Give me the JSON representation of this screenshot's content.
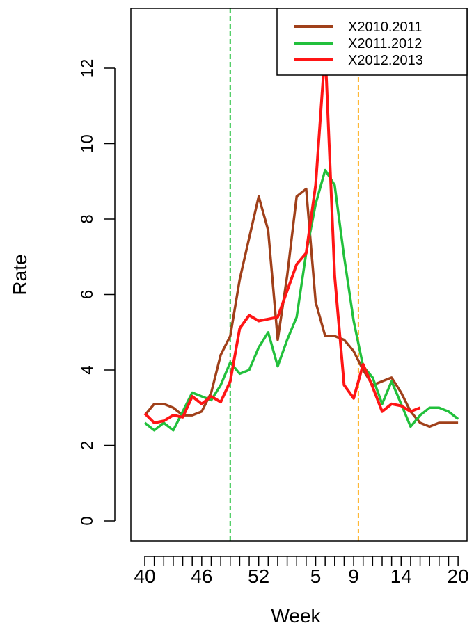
{
  "chart_data": {
    "type": "line",
    "title": "",
    "xlabel": "Week",
    "ylabel": "Rate",
    "ylim": [
      0,
      13
    ],
    "grid": false,
    "legend_position": "top-right",
    "x_weeks": [
      40,
      41,
      42,
      43,
      44,
      45,
      46,
      47,
      48,
      49,
      50,
      51,
      52,
      53,
      1,
      2,
      3,
      4,
      5,
      6,
      7,
      8,
      9,
      10,
      11,
      12,
      13,
      14,
      15,
      16,
      17,
      18,
      19,
      20
    ],
    "x_tick_labels": [
      "40",
      "46",
      "52",
      "5",
      "9",
      "14",
      "20"
    ],
    "x_tick_label_positions": [
      0,
      6,
      12,
      18,
      22,
      27,
      33
    ],
    "y_ticks": [
      0,
      2,
      4,
      6,
      8,
      10,
      12
    ],
    "series": [
      {
        "name": "X2010.2011",
        "color": "#A0401A",
        "values": [
          2.8,
          3.1,
          3.1,
          3.0,
          2.8,
          2.8,
          2.9,
          3.4,
          4.4,
          4.9,
          6.4,
          7.5,
          8.6,
          7.7,
          4.8,
          6.5,
          8.6,
          8.8,
          5.8,
          4.9,
          4.9,
          4.8,
          4.5,
          4.0,
          3.6,
          3.7,
          3.8,
          3.4,
          2.9,
          2.6,
          2.5,
          2.6,
          2.6,
          2.6
        ]
      },
      {
        "name": "X2011.2012",
        "color": "#22C03C",
        "values": [
          2.6,
          2.4,
          2.6,
          2.4,
          2.9,
          3.4,
          3.3,
          3.2,
          3.6,
          4.2,
          3.9,
          4.0,
          4.6,
          5.0,
          4.1,
          4.8,
          5.4,
          7.1,
          8.4,
          9.3,
          8.9,
          7.0,
          5.3,
          4.1,
          3.8,
          3.1,
          3.7,
          3.1,
          2.5,
          2.8,
          3.0,
          3.0,
          2.9,
          2.7
        ]
      },
      {
        "name": "X2012.2013",
        "color": "#FF1515",
        "values": [
          2.85,
          2.6,
          2.65,
          2.8,
          2.75,
          3.3,
          3.1,
          3.3,
          3.15,
          3.7,
          5.1,
          5.45,
          5.3,
          5.35,
          5.4,
          6.1,
          6.8,
          7.1,
          8.9,
          12.5,
          6.5,
          3.6,
          3.25,
          4.15,
          3.55,
          2.9,
          3.1,
          3.05,
          2.9,
          3.0
        ]
      }
    ],
    "vlines": [
      {
        "x_index": 9,
        "color": "#22C03C",
        "style": "dashed"
      },
      {
        "x_index": 22.5,
        "color": "#FFB020",
        "style": "dashed"
      }
    ]
  }
}
